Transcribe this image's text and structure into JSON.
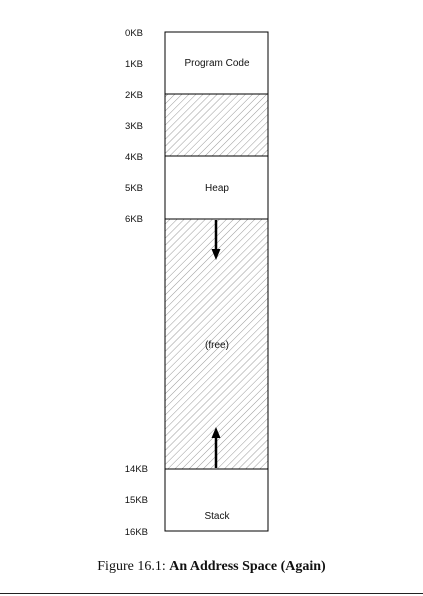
{
  "address_ticks": [
    "0KB",
    "1KB",
    "2KB",
    "3KB",
    "4KB",
    "5KB",
    "6KB",
    "14KB",
    "15KB",
    "16KB"
  ],
  "segments": [
    {
      "label": "Program Code",
      "start_kb": 0,
      "end_kb": 2,
      "fill": "white"
    },
    {
      "label": "",
      "start_kb": 2,
      "end_kb": 4,
      "fill": "hatched"
    },
    {
      "label": "Heap",
      "start_kb": 4,
      "end_kb": 6,
      "fill": "white"
    },
    {
      "label": "(free)",
      "start_kb": 6,
      "end_kb": 14,
      "fill": "hatched"
    },
    {
      "label": "Stack",
      "start_kb": 14,
      "end_kb": 16,
      "fill": "white"
    }
  ],
  "growth_arrows": [
    {
      "from": "heap",
      "direction": "down"
    },
    {
      "from": "stack",
      "direction": "up"
    }
  ],
  "caption": {
    "prefix": "Figure 16.1: ",
    "title": "An Address Space (Again)"
  },
  "colors": {
    "stroke": "#000000",
    "hatch": "#9a9a9a"
  }
}
